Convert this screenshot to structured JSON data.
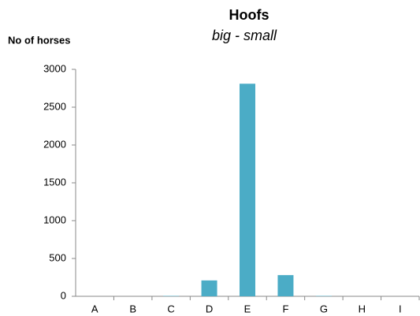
{
  "chart_data": {
    "type": "bar",
    "title": "Hoofs",
    "subtitle": "big - small",
    "y_label": "No of horses",
    "categories": [
      "A",
      "B",
      "C",
      "D",
      "E",
      "F",
      "G",
      "H",
      "I"
    ],
    "values": [
      0,
      0,
      5,
      210,
      2810,
      280,
      5,
      0,
      0
    ],
    "color": "#4bacc6",
    "ylim": [
      0,
      3000
    ],
    "yticks": [
      0,
      500,
      1000,
      1500,
      2000,
      2500,
      3000
    ],
    "grid": false
  }
}
